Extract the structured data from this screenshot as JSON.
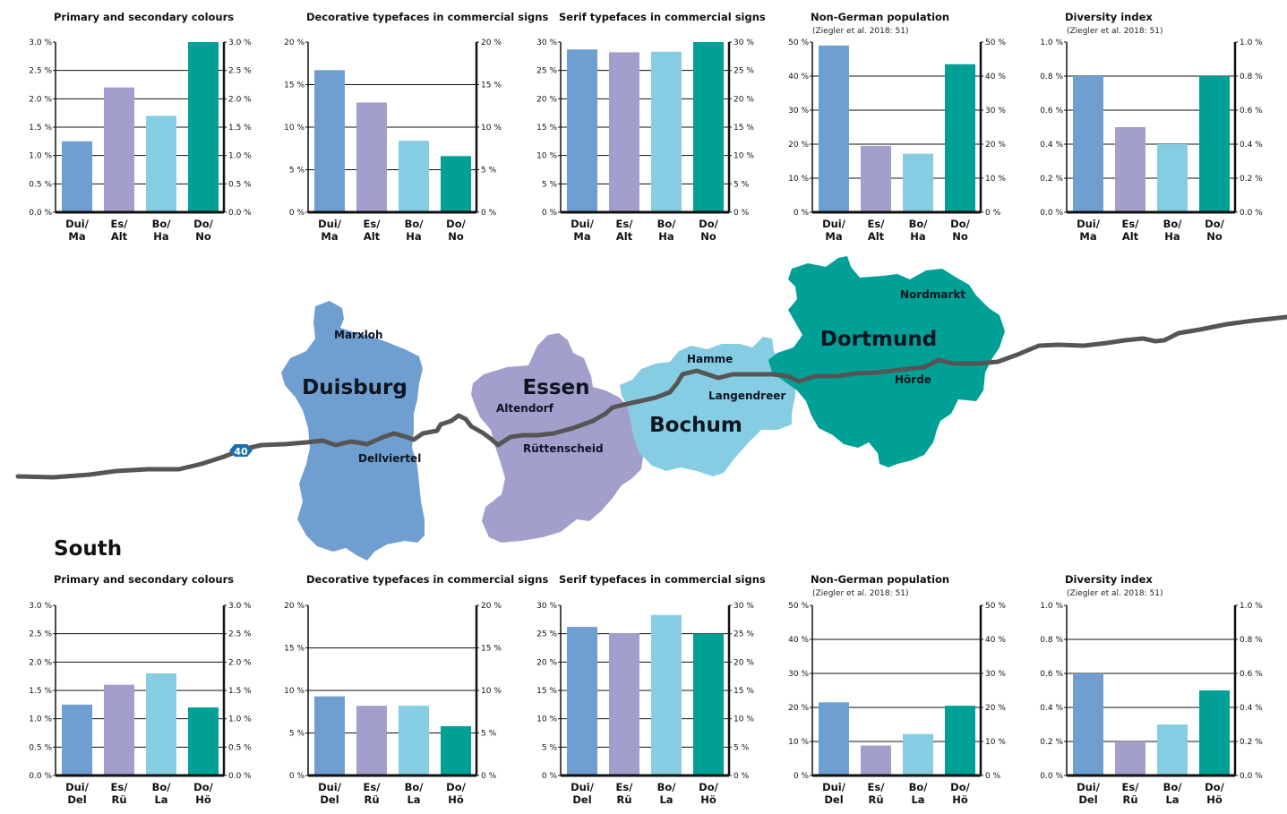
{
  "palette": {
    "dui": "#6f9fd0",
    "es": "#a29fcc",
    "bo": "#86cde3",
    "do": "#00a096",
    "road": "#555555",
    "shield": "#1d6ea8"
  },
  "map": {
    "motorway_number": "40",
    "cities": {
      "duisburg": "Duisburg",
      "essen": "Essen",
      "bochum": "Bochum",
      "dortmund": "Dortmund"
    },
    "districts": {
      "marxloh": "Marxloh",
      "dellviertel": "Dellviertel",
      "altendorf": "Altendorf",
      "ruettenscheid": "Rüttenscheid",
      "hamme": "Hamme",
      "langendreer": "Langendreer",
      "nordmarkt": "Nordmarkt",
      "hoerde": "Hörde"
    }
  },
  "south_label": "South",
  "chart_data": [
    {
      "type": "bar",
      "title": "Primary and secondary colours",
      "source": "",
      "categories": [
        "Dui/ Ma",
        "Es/ Alt",
        "Bo/ Ha",
        "Do/ No"
      ],
      "values": [
        1.25,
        2.2,
        1.7,
        3.0
      ],
      "ylim": [
        0,
        3
      ],
      "yticks": [
        "0.0 %",
        "0.5 %",
        "1.0 %",
        "1.5 %",
        "2.0 %",
        "2.5 %",
        "3.0 %"
      ],
      "grid": true
    },
    {
      "type": "bar",
      "title": "Decorative typefaces in commercial signs",
      "source": "",
      "categories": [
        "Dui/ Ma",
        "Es/ Alt",
        "Bo/ Ha",
        "Do/ No"
      ],
      "values": [
        16.7,
        12.9,
        8.4,
        6.6
      ],
      "ylim": [
        0,
        20
      ],
      "yticks": [
        "0 %",
        "5 %",
        "10 %",
        "15 %",
        "20 %"
      ],
      "grid": true
    },
    {
      "type": "bar",
      "title": "Serif typefaces in commercial signs",
      "source": "",
      "categories": [
        "Dui/ Ma",
        "Es/ Alt",
        "Bo/ Ha",
        "Do/ No"
      ],
      "values": [
        28.7,
        28.2,
        28.3,
        30.0
      ],
      "ylim": [
        0,
        30
      ],
      "yticks": [
        "0 %",
        "5 %",
        "10 %",
        "15 %",
        "20 %",
        "25 %",
        "30 %"
      ],
      "grid": true
    },
    {
      "type": "bar",
      "title": "Non-German population",
      "source": "(Ziegler et al. 2018: 51)",
      "categories": [
        "Dui/ Ma",
        "Es/ Alt",
        "Bo/ Ha",
        "Do/ No"
      ],
      "values": [
        49,
        19.5,
        17.2,
        43.5
      ],
      "ylim": [
        0,
        50
      ],
      "yticks": [
        "0 %",
        "10 %",
        "20 %",
        "30 %",
        "40 %",
        "50 %"
      ],
      "grid": true
    },
    {
      "type": "bar",
      "title": "Diversity index",
      "source": "(Ziegler et al. 2018: 51)",
      "categories": [
        "Dui/ Ma",
        "Es/ Alt",
        "Bo/ Ha",
        "Do/ No"
      ],
      "values": [
        0.8,
        0.5,
        0.4,
        0.8
      ],
      "ylim": [
        0,
        1
      ],
      "yticks": [
        "0.0 %",
        "0.2 %",
        "0.4 %",
        "0.6 %",
        "0.8 %",
        "1.0 %"
      ],
      "grid": true
    },
    {
      "type": "bar",
      "title": "Primary and secondary colours",
      "source": "",
      "categories": [
        "Dui/ Del",
        "Es/ Rü",
        "Bo/ La",
        "Do/ Hö"
      ],
      "values": [
        1.25,
        1.6,
        1.8,
        1.2
      ],
      "ylim": [
        0,
        3
      ],
      "yticks": [
        "0.0 %",
        "0.5 %",
        "1.0 %",
        "1.5 %",
        "2.0 %",
        "2.5 %",
        "3.0 %"
      ],
      "grid": true
    },
    {
      "type": "bar",
      "title": "Decorative typefaces in commercial signs",
      "source": "",
      "categories": [
        "Dui/ Del",
        "Es/ Rü",
        "Bo/ La",
        "Do/ Hö"
      ],
      "values": [
        9.3,
        8.2,
        8.2,
        5.8
      ],
      "ylim": [
        0,
        20
      ],
      "yticks": [
        "0 %",
        "5 %",
        "10 %",
        "15 %",
        "20 %"
      ],
      "grid": true
    },
    {
      "type": "bar",
      "title": "Serif typefaces in commercial signs",
      "source": "",
      "categories": [
        "Dui/ Del",
        "Es/ Rü",
        "Bo/ La",
        "Do/ Hö"
      ],
      "values": [
        26.2,
        25.1,
        28.3,
        25.0
      ],
      "ylim": [
        0,
        30
      ],
      "yticks": [
        "0 %",
        "5 %",
        "10 %",
        "15 %",
        "20 %",
        "25 %",
        "30 %"
      ],
      "grid": true
    },
    {
      "type": "bar",
      "title": "Non-German population",
      "source": "(Ziegler et al. 2018: 51)",
      "categories": [
        "Dui/ Del",
        "Es/ Rü",
        "Bo/ La",
        "Do/ Hö"
      ],
      "values": [
        21.5,
        8.8,
        12.2,
        20.5
      ],
      "ylim": [
        0,
        50
      ],
      "yticks": [
        "0 %",
        "10 %",
        "20 %",
        "30 %",
        "40 %",
        "50 %"
      ],
      "grid": true
    },
    {
      "type": "bar",
      "title": "Diversity index",
      "source": "(Ziegler et al. 2018: 51)",
      "categories": [
        "Dui/ Del",
        "Es/ Rü",
        "Bo/ La",
        "Do/ Hö"
      ],
      "values": [
        0.6,
        0.2,
        0.3,
        0.5
      ],
      "ylim": [
        0,
        1
      ],
      "yticks": [
        "0.0 %",
        "0.2 %",
        "0.4 %",
        "0.6 %",
        "0.8 %",
        "1.0 %"
      ],
      "grid": true
    }
  ]
}
